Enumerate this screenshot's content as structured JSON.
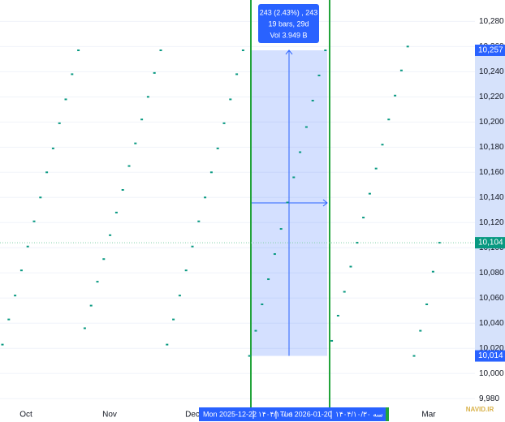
{
  "chart_data": {
    "type": "candles",
    "ylim": [
      9975,
      10297
    ],
    "yticks": [
      {
        "value": 9980,
        "label": "9,980"
      },
      {
        "value": 10000,
        "label": "10,000"
      },
      {
        "value": 10020,
        "label": "10,020"
      },
      {
        "value": 10040,
        "label": "10,040"
      },
      {
        "value": 10060,
        "label": "10,060"
      },
      {
        "value": 10080,
        "label": "10,080"
      },
      {
        "value": 10100,
        "label": "10,100"
      },
      {
        "value": 10120,
        "label": "10,120"
      },
      {
        "value": 10140,
        "label": "10,140"
      },
      {
        "value": 10160,
        "label": "10,160"
      },
      {
        "value": 10180,
        "label": "10,180"
      },
      {
        "value": 10200,
        "label": "10,200"
      },
      {
        "value": 10220,
        "label": "10,220"
      },
      {
        "value": 10240,
        "label": "10,240"
      },
      {
        "value": 10260,
        "label": "10,260"
      },
      {
        "value": 10280,
        "label": "10,280"
      }
    ],
    "color": "#089981",
    "values": [
      10023,
      10043,
      10062,
      10082,
      10101,
      10121,
      10140,
      10160,
      10179,
      10199,
      10218,
      10238,
      10257,
      10036,
      10054,
      10073,
      10091,
      10110,
      10128,
      10146,
      10165,
      10183,
      10202,
      10220,
      10239,
      10257,
      10023,
      10043,
      10062,
      10082,
      10101,
      10121,
      10140,
      10160,
      10179,
      10199,
      10218,
      10238,
      10257,
      10014,
      10034,
      10055,
      10075,
      10095,
      10115,
      10136,
      10156,
      10176,
      10196,
      10217,
      10237,
      10257,
      10026,
      10046,
      10065,
      10085,
      10104,
      10124,
      10143,
      10163,
      10182,
      10202,
      10221,
      10241,
      10260,
      10014,
      10034,
      10055,
      10081,
      10104
    ],
    "x_labels": [
      "Oct",
      "Nov",
      "Dec",
      "Mar"
    ],
    "measure": {
      "from": {
        "value": 10014,
        "label": "10,014"
      },
      "to": {
        "value": 10257,
        "label": "10,257"
      },
      "lines": [
        "243 (2.43%) , 243",
        "19 bars, 29d",
        "Vol 3.949 B"
      ]
    },
    "crosshair": {
      "value": 10104,
      "label": "10,104"
    },
    "date_range": [
      "Mon 2025-12-22",
      "۱۴۰۴/۱۰/۰۱",
      "Tue 2026-01-20",
      "۱۴۰۴/۱۰/۳۰ سه"
    ],
    "logo": "NAVID.IR",
    "grid": true
  }
}
